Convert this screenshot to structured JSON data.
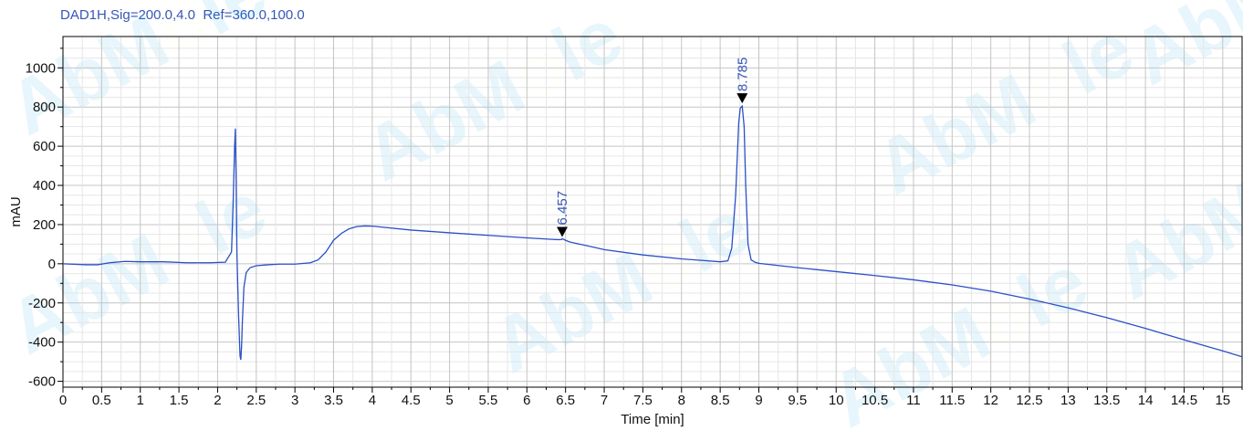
{
  "chart_data": {
    "type": "line",
    "title": "DAD1H,Sig=200.0,4.0  Ref=360.0,100.0",
    "xlabel": "Time [min]",
    "ylabel": "mAU",
    "xlim": [
      0,
      15.25
    ],
    "ylim": [
      -630,
      1160
    ],
    "xticks": [
      0,
      0.5,
      1,
      1.5,
      2,
      2.5,
      3,
      3.5,
      4,
      4.5,
      5,
      5.5,
      6,
      6.5,
      7,
      7.5,
      8,
      8.5,
      9,
      9.5,
      10,
      10.5,
      11,
      11.5,
      12,
      12.5,
      13,
      13.5,
      14,
      14.5,
      15
    ],
    "xtick_labels": [
      "0",
      "0.5",
      "1",
      "1.5",
      "2",
      "2.5",
      "3",
      "3.5",
      "4",
      "4.5",
      "5",
      "5.5",
      "6",
      "6.5",
      "7",
      "7.5",
      "8",
      "8.5",
      "9",
      "9.5",
      "10",
      "10.5",
      "11",
      "11.5",
      "12",
      "12.5",
      "13",
      "13.5",
      "14",
      "14.5",
      "15"
    ],
    "yticks": [
      -600,
      -400,
      -200,
      0,
      200,
      400,
      600,
      800,
      1000
    ],
    "ytick_labels": [
      "-600",
      "-400",
      "-200",
      "0",
      "200",
      "400",
      "600",
      "800",
      "1000"
    ],
    "grid": true,
    "line_color": "#2b4fc6",
    "series": [
      {
        "x": [
          0,
          0.3,
          0.45,
          0.6,
          0.8,
          1.0,
          1.3,
          1.6,
          1.9,
          2.1,
          2.18,
          2.2,
          2.22,
          2.23,
          2.24,
          2.25,
          2.27,
          2.29,
          2.3,
          2.31,
          2.32,
          2.34,
          2.37,
          2.42,
          2.5,
          2.65,
          2.8,
          3.0,
          3.2,
          3.3,
          3.4,
          3.5,
          3.6,
          3.7,
          3.8,
          3.9,
          4.0,
          4.1,
          4.5,
          5.0,
          5.5,
          6.0,
          6.3,
          6.4,
          6.45,
          6.457,
          6.5,
          6.55,
          6.6,
          6.8,
          7.0,
          7.5,
          8.0,
          8.5,
          8.6,
          8.65,
          8.7,
          8.74,
          8.76,
          8.785,
          8.81,
          8.83,
          8.86,
          8.9,
          8.95,
          9.0,
          9.5,
          10.0,
          10.5,
          11.0,
          11.5,
          12.0,
          12.5,
          13.0,
          13.5,
          14.0,
          14.5,
          15.0,
          15.25
        ],
        "y": [
          0,
          -5,
          -5,
          5,
          12,
          10,
          10,
          5,
          5,
          8,
          60,
          300,
          600,
          690,
          420,
          50,
          -250,
          -470,
          -490,
          -420,
          -300,
          -120,
          -45,
          -20,
          -10,
          -5,
          -2,
          -2,
          5,
          20,
          60,
          120,
          155,
          178,
          190,
          193,
          192,
          188,
          172,
          158,
          145,
          132,
          125,
          123,
          124,
          128,
          120,
          112,
          107,
          90,
          72,
          45,
          25,
          10,
          15,
          80,
          350,
          720,
          795,
          805,
          700,
          400,
          100,
          20,
          8,
          2,
          -20,
          -40,
          -60,
          -82,
          -108,
          -140,
          -180,
          -225,
          -275,
          -330,
          -388,
          -445,
          -475
        ]
      }
    ],
    "annotations": [
      {
        "label": "6.457",
        "x": 6.457,
        "y": 123
      },
      {
        "label": "8.785",
        "x": 8.785,
        "y": 805
      }
    ]
  },
  "watermark": {
    "text_before": "AbM",
    "text_o": "o",
    "text_after": "le",
    "primary_color": "#00a8e8",
    "accent_color": "#ffc400"
  }
}
